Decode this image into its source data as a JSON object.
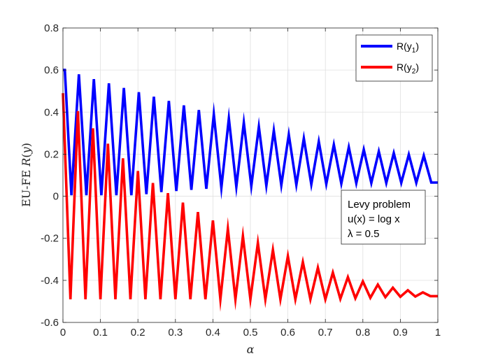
{
  "chart_data": {
    "type": "line",
    "xlabel": "α",
    "ylabel": "EU-FE R(y)",
    "xlim": [
      0,
      1
    ],
    "ylim": [
      -0.6,
      0.8
    ],
    "xticks": [
      "0",
      "0.1",
      "0.2",
      "0.3",
      "0.4",
      "0.5",
      "0.6",
      "0.7",
      "0.8",
      "0.9",
      "1"
    ],
    "yticks": [
      "-0.6",
      "-0.4",
      "-0.2",
      "0",
      "0.2",
      "0.4",
      "0.6",
      "0.8"
    ],
    "grid": true,
    "legend": {
      "location": "top-right",
      "entries": [
        "R(y1)",
        "R(y2)"
      ]
    },
    "annotation": [
      "Levy problem",
      "u(x) = log x",
      "λ = 0.5"
    ],
    "series": [
      {
        "name": "R(y1)",
        "color": "#0000ff",
        "x": [
          0.0,
          0.005,
          0.0225,
          0.0425,
          0.0625,
          0.0825,
          0.1025,
          0.1225,
          0.1425,
          0.1625,
          0.1825,
          0.2025,
          0.2225,
          0.2425,
          0.2625,
          0.2825,
          0.3025,
          0.3225,
          0.3425,
          0.3625,
          0.3825,
          0.4025,
          0.4225,
          0.4425,
          0.4625,
          0.4825,
          0.5025,
          0.5225,
          0.5425,
          0.5625,
          0.5825,
          0.6025,
          0.6225,
          0.6425,
          0.6625,
          0.6825,
          0.7025,
          0.7225,
          0.7425,
          0.7625,
          0.7825,
          0.8025,
          0.8225,
          0.8425,
          0.8625,
          0.8825,
          0.9025,
          0.9225,
          0.9425,
          0.9625,
          0.9825,
          1.0
        ],
        "y": [
          0.6,
          0.6,
          0.005,
          0.58,
          0.005,
          0.557,
          0.005,
          0.537,
          0.005,
          0.515,
          0.005,
          0.495,
          0.01,
          0.473,
          0.02,
          0.453,
          0.025,
          0.432,
          0.03,
          0.41,
          0.035,
          0.39,
          0.04,
          0.37,
          0.045,
          0.35,
          0.048,
          0.33,
          0.05,
          0.312,
          0.052,
          0.293,
          0.054,
          0.275,
          0.056,
          0.26,
          0.058,
          0.245,
          0.06,
          0.233,
          0.062,
          0.222,
          0.063,
          0.213,
          0.063,
          0.205,
          0.064,
          0.198,
          0.064,
          0.193,
          0.065,
          0.065
        ]
      },
      {
        "name": "R(y2)",
        "color": "#ff0000",
        "x": [
          0.0,
          0.02,
          0.04,
          0.06,
          0.08,
          0.1,
          0.12,
          0.14,
          0.16,
          0.18,
          0.2,
          0.22,
          0.24,
          0.26,
          0.28,
          0.3,
          0.32,
          0.34,
          0.36,
          0.38,
          0.4,
          0.42,
          0.44,
          0.46,
          0.48,
          0.5,
          0.52,
          0.54,
          0.56,
          0.58,
          0.6,
          0.62,
          0.64,
          0.66,
          0.68,
          0.7,
          0.72,
          0.74,
          0.76,
          0.78,
          0.8,
          0.82,
          0.84,
          0.86,
          0.88,
          0.9,
          0.92,
          0.94,
          0.96,
          0.98,
          1.0
        ],
        "y": [
          0.49,
          -0.49,
          0.405,
          -0.49,
          0.323,
          -0.49,
          0.25,
          -0.49,
          0.18,
          -0.49,
          0.12,
          -0.49,
          0.063,
          -0.49,
          0.015,
          -0.49,
          -0.03,
          -0.49,
          -0.075,
          -0.49,
          -0.115,
          -0.49,
          -0.155,
          -0.49,
          -0.19,
          -0.49,
          -0.222,
          -0.49,
          -0.255,
          -0.49,
          -0.285,
          -0.49,
          -0.313,
          -0.49,
          -0.34,
          -0.49,
          -0.363,
          -0.488,
          -0.385,
          -0.485,
          -0.405,
          -0.483,
          -0.42,
          -0.48,
          -0.435,
          -0.478,
          -0.447,
          -0.477,
          -0.457,
          -0.475,
          -0.475
        ]
      }
    ]
  }
}
